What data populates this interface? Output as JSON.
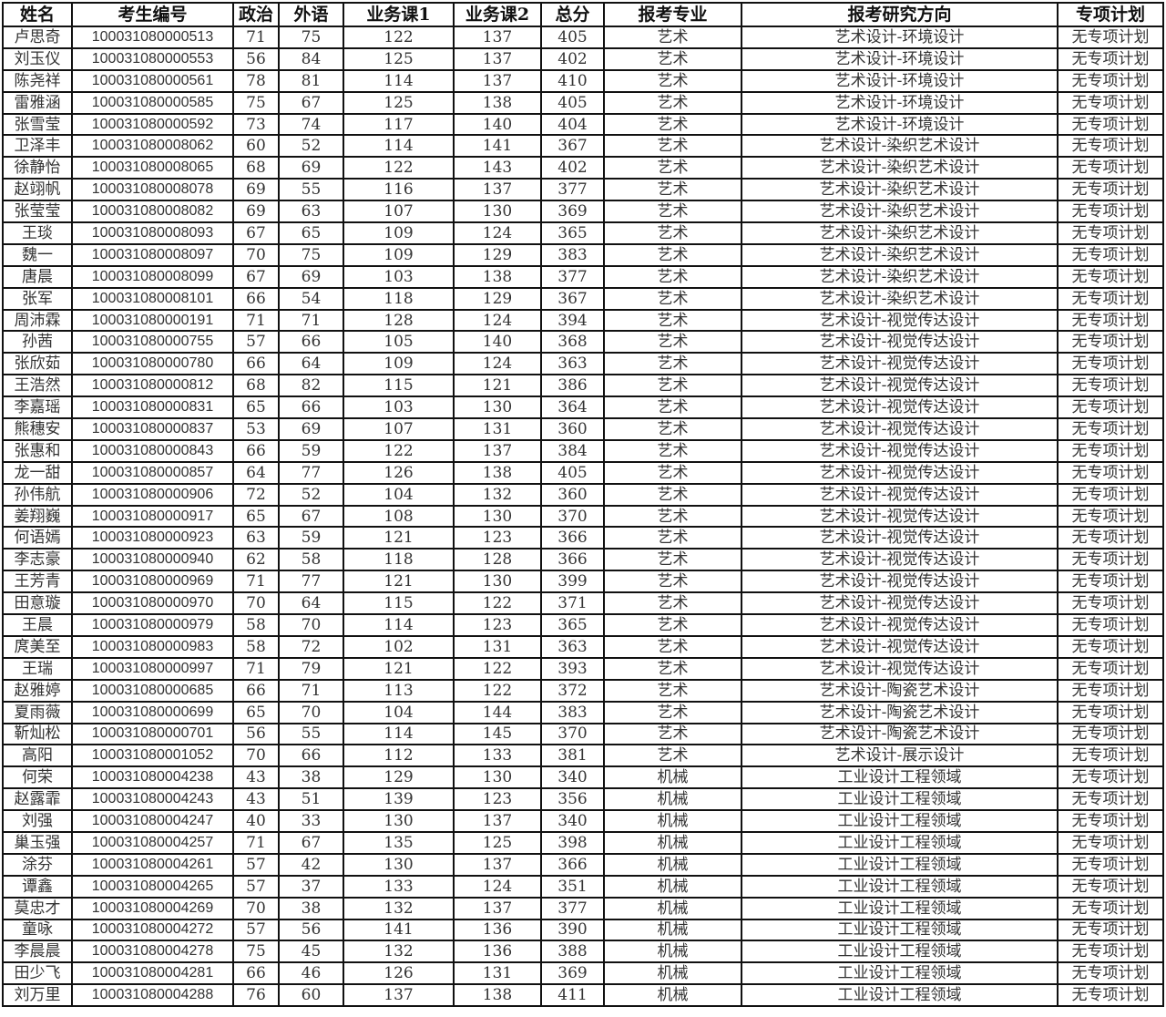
{
  "table": {
    "headers": [
      "姓名",
      "考生编号",
      "政治",
      "外语",
      "业务课1",
      "业务课2",
      "总分",
      "报考专业",
      "报考研究方向",
      "专项计划"
    ],
    "rows": [
      [
        "卢思奇",
        "100031080000513",
        "71",
        "75",
        "122",
        "137",
        "405",
        "艺术",
        "艺术设计-环境设计",
        "无专项计划"
      ],
      [
        "刘玉仪",
        "100031080000553",
        "56",
        "84",
        "125",
        "137",
        "402",
        "艺术",
        "艺术设计-环境设计",
        "无专项计划"
      ],
      [
        "陈尧祥",
        "100031080000561",
        "78",
        "81",
        "114",
        "137",
        "410",
        "艺术",
        "艺术设计-环境设计",
        "无专项计划"
      ],
      [
        "雷雅涵",
        "100031080000585",
        "75",
        "67",
        "125",
        "138",
        "405",
        "艺术",
        "艺术设计-环境设计",
        "无专项计划"
      ],
      [
        "张雪莹",
        "100031080000592",
        "73",
        "74",
        "117",
        "140",
        "404",
        "艺术",
        "艺术设计-环境设计",
        "无专项计划"
      ],
      [
        "卫泽丰",
        "100031080008062",
        "60",
        "52",
        "114",
        "141",
        "367",
        "艺术",
        "艺术设计-染织艺术设计",
        "无专项计划"
      ],
      [
        "徐静怡",
        "100031080008065",
        "68",
        "69",
        "122",
        "143",
        "402",
        "艺术",
        "艺术设计-染织艺术设计",
        "无专项计划"
      ],
      [
        "赵翊帆",
        "100031080008078",
        "69",
        "55",
        "116",
        "137",
        "377",
        "艺术",
        "艺术设计-染织艺术设计",
        "无专项计划"
      ],
      [
        "张莹莹",
        "100031080008082",
        "69",
        "63",
        "107",
        "130",
        "369",
        "艺术",
        "艺术设计-染织艺术设计",
        "无专项计划"
      ],
      [
        "王琰",
        "100031080008093",
        "67",
        "65",
        "109",
        "124",
        "365",
        "艺术",
        "艺术设计-染织艺术设计",
        "无专项计划"
      ],
      [
        "魏一",
        "100031080008097",
        "70",
        "75",
        "109",
        "129",
        "383",
        "艺术",
        "艺术设计-染织艺术设计",
        "无专项计划"
      ],
      [
        "唐晨",
        "100031080008099",
        "67",
        "69",
        "103",
        "138",
        "377",
        "艺术",
        "艺术设计-染织艺术设计",
        "无专项计划"
      ],
      [
        "张军",
        "100031080008101",
        "66",
        "54",
        "118",
        "129",
        "367",
        "艺术",
        "艺术设计-染织艺术设计",
        "无专项计划"
      ],
      [
        "周沛霖",
        "100031080000191",
        "71",
        "71",
        "128",
        "124",
        "394",
        "艺术",
        "艺术设计-视觉传达设计",
        "无专项计划"
      ],
      [
        "孙茜",
        "100031080000755",
        "57",
        "66",
        "105",
        "140",
        "368",
        "艺术",
        "艺术设计-视觉传达设计",
        "无专项计划"
      ],
      [
        "张欣茹",
        "100031080000780",
        "66",
        "64",
        "109",
        "124",
        "363",
        "艺术",
        "艺术设计-视觉传达设计",
        "无专项计划"
      ],
      [
        "王浩然",
        "100031080000812",
        "68",
        "82",
        "115",
        "121",
        "386",
        "艺术",
        "艺术设计-视觉传达设计",
        "无专项计划"
      ],
      [
        "李嘉瑶",
        "100031080000831",
        "65",
        "66",
        "103",
        "130",
        "364",
        "艺术",
        "艺术设计-视觉传达设计",
        "无专项计划"
      ],
      [
        "熊穗安",
        "100031080000837",
        "53",
        "69",
        "107",
        "131",
        "360",
        "艺术",
        "艺术设计-视觉传达设计",
        "无专项计划"
      ],
      [
        "张惠和",
        "100031080000843",
        "66",
        "59",
        "122",
        "137",
        "384",
        "艺术",
        "艺术设计-视觉传达设计",
        "无专项计划"
      ],
      [
        "龙一甜",
        "100031080000857",
        "64",
        "77",
        "126",
        "138",
        "405",
        "艺术",
        "艺术设计-视觉传达设计",
        "无专项计划"
      ],
      [
        "孙伟航",
        "100031080000906",
        "72",
        "52",
        "104",
        "132",
        "360",
        "艺术",
        "艺术设计-视觉传达设计",
        "无专项计划"
      ],
      [
        "姜翔巍",
        "100031080000917",
        "65",
        "67",
        "108",
        "130",
        "370",
        "艺术",
        "艺术设计-视觉传达设计",
        "无专项计划"
      ],
      [
        "何语嫣",
        "100031080000923",
        "63",
        "59",
        "121",
        "123",
        "366",
        "艺术",
        "艺术设计-视觉传达设计",
        "无专项计划"
      ],
      [
        "李志豪",
        "100031080000940",
        "62",
        "58",
        "118",
        "128",
        "366",
        "艺术",
        "艺术设计-视觉传达设计",
        "无专项计划"
      ],
      [
        "王芳青",
        "100031080000969",
        "71",
        "77",
        "121",
        "130",
        "399",
        "艺术",
        "艺术设计-视觉传达设计",
        "无专项计划"
      ],
      [
        "田意璇",
        "100031080000970",
        "70",
        "64",
        "115",
        "122",
        "371",
        "艺术",
        "艺术设计-视觉传达设计",
        "无专项计划"
      ],
      [
        "王晨",
        "100031080000979",
        "58",
        "70",
        "114",
        "123",
        "365",
        "艺术",
        "艺术设计-视觉传达设计",
        "无专项计划"
      ],
      [
        "庹美至",
        "100031080000983",
        "58",
        "72",
        "102",
        "131",
        "363",
        "艺术",
        "艺术设计-视觉传达设计",
        "无专项计划"
      ],
      [
        "王瑞",
        "100031080000997",
        "71",
        "79",
        "121",
        "122",
        "393",
        "艺术",
        "艺术设计-视觉传达设计",
        "无专项计划"
      ],
      [
        "赵雅婷",
        "100031080000685",
        "66",
        "71",
        "113",
        "122",
        "372",
        "艺术",
        "艺术设计-陶瓷艺术设计",
        "无专项计划"
      ],
      [
        "夏雨薇",
        "100031080000699",
        "65",
        "70",
        "104",
        "144",
        "383",
        "艺术",
        "艺术设计-陶瓷艺术设计",
        "无专项计划"
      ],
      [
        "靳灿松",
        "100031080000701",
        "56",
        "55",
        "114",
        "145",
        "370",
        "艺术",
        "艺术设计-陶瓷艺术设计",
        "无专项计划"
      ],
      [
        "高阳",
        "100031080001052",
        "70",
        "66",
        "112",
        "133",
        "381",
        "艺术",
        "艺术设计-展示设计",
        "无专项计划"
      ],
      [
        "何荣",
        "100031080004238",
        "43",
        "38",
        "129",
        "130",
        "340",
        "机械",
        "工业设计工程领域",
        "无专项计划"
      ],
      [
        "赵露霏",
        "100031080004243",
        "43",
        "51",
        "139",
        "123",
        "356",
        "机械",
        "工业设计工程领域",
        "无专项计划"
      ],
      [
        "刘强",
        "100031080004247",
        "40",
        "33",
        "130",
        "137",
        "340",
        "机械",
        "工业设计工程领域",
        "无专项计划"
      ],
      [
        "巢玉强",
        "100031080004257",
        "71",
        "67",
        "135",
        "125",
        "398",
        "机械",
        "工业设计工程领域",
        "无专项计划"
      ],
      [
        "涂芬",
        "100031080004261",
        "57",
        "42",
        "130",
        "137",
        "366",
        "机械",
        "工业设计工程领域",
        "无专项计划"
      ],
      [
        "谭鑫",
        "100031080004265",
        "57",
        "37",
        "133",
        "124",
        "351",
        "机械",
        "工业设计工程领域",
        "无专项计划"
      ],
      [
        "莫忠才",
        "100031080004269",
        "70",
        "38",
        "132",
        "137",
        "377",
        "机械",
        "工业设计工程领域",
        "无专项计划"
      ],
      [
        "童咏",
        "100031080004272",
        "57",
        "56",
        "141",
        "136",
        "390",
        "机械",
        "工业设计工程领域",
        "无专项计划"
      ],
      [
        "李晨晨",
        "100031080004278",
        "75",
        "45",
        "132",
        "136",
        "388",
        "机械",
        "工业设计工程领域",
        "无专项计划"
      ],
      [
        "田少飞",
        "100031080004281",
        "66",
        "46",
        "126",
        "131",
        "369",
        "机械",
        "工业设计工程领域",
        "无专项计划"
      ],
      [
        "刘万里",
        "100031080004288",
        "76",
        "60",
        "137",
        "138",
        "411",
        "机械",
        "工业设计工程领域",
        "无专项计划"
      ]
    ]
  }
}
